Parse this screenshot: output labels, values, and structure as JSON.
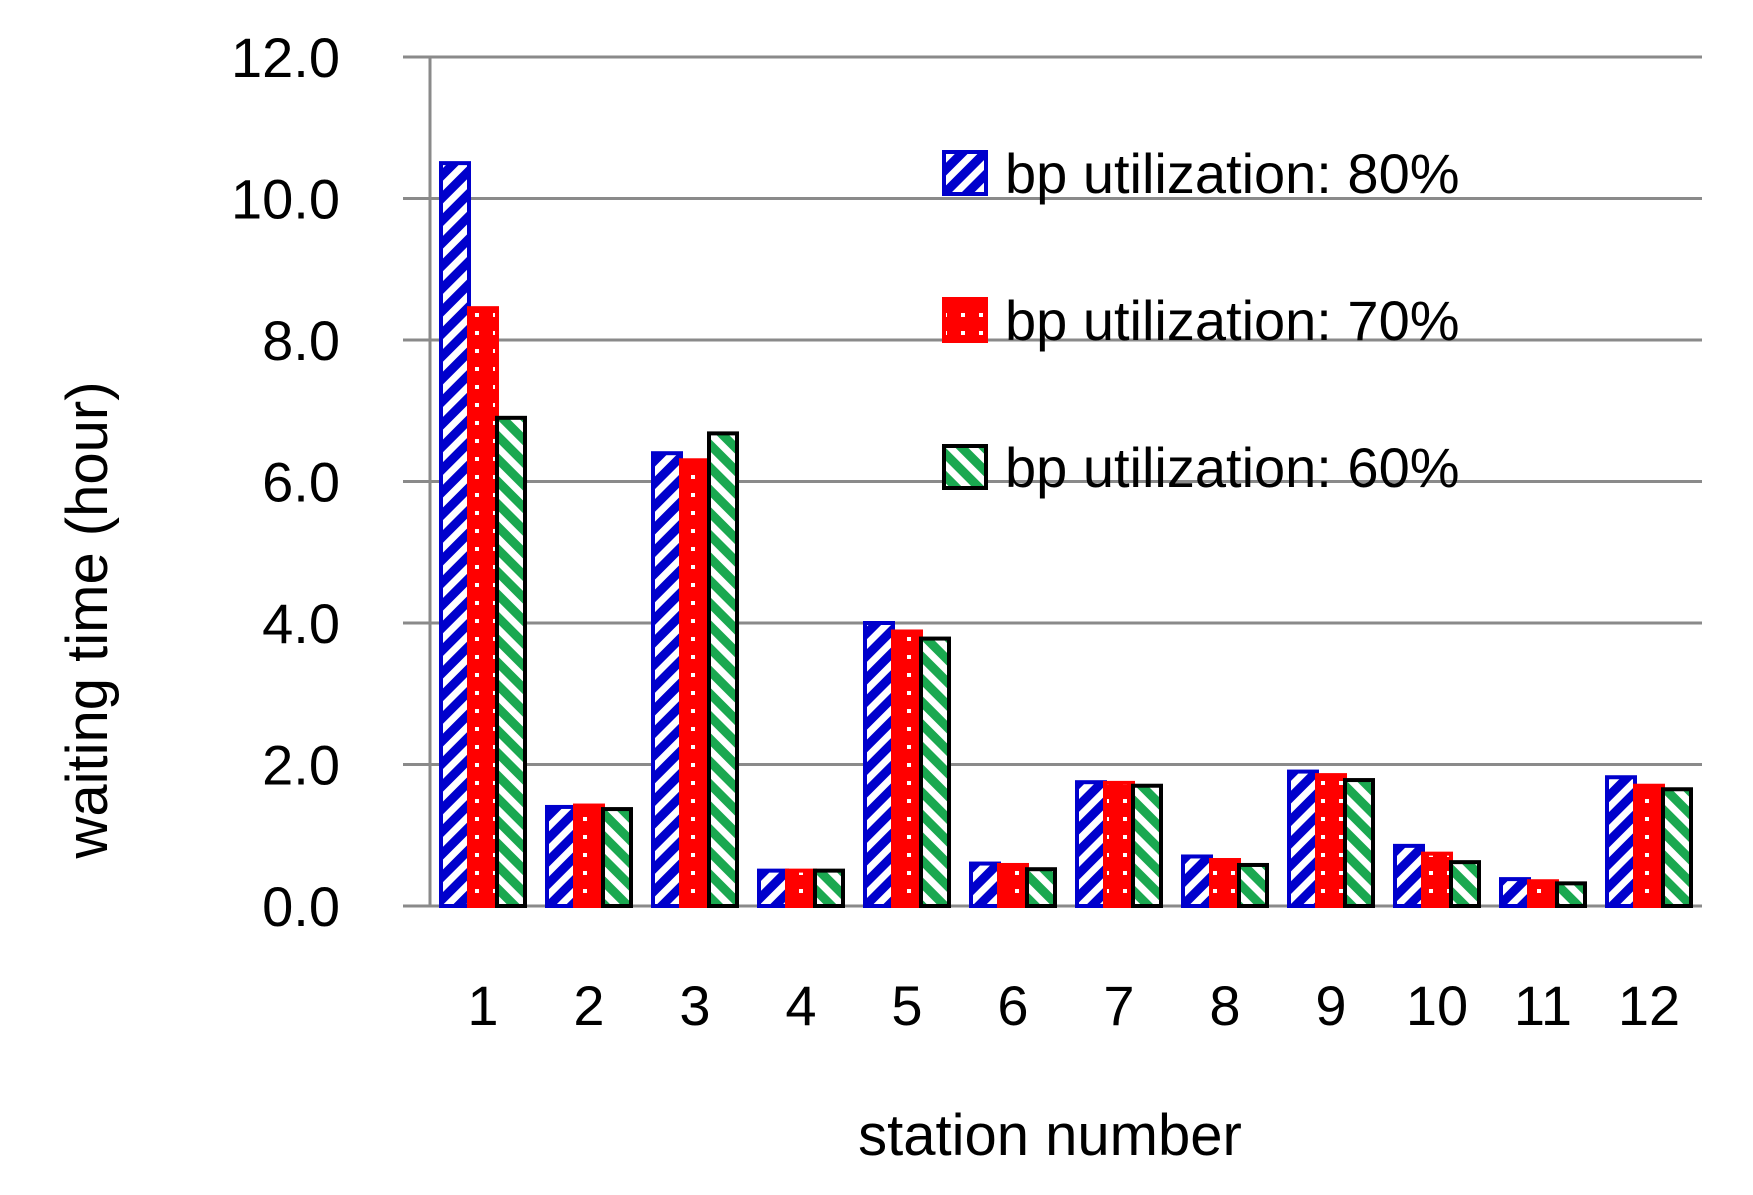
{
  "chart_data": {
    "type": "bar",
    "title": "",
    "xlabel": "station number",
    "ylabel": "waiting time (hour)",
    "ylim": [
      0,
      12
    ],
    "yticks": [
      "0.0",
      "2.0",
      "4.0",
      "6.0",
      "8.0",
      "10.0",
      "12.0"
    ],
    "categories": [
      "1",
      "2",
      "3",
      "4",
      "5",
      "6",
      "7",
      "8",
      "9",
      "10",
      "11",
      "12"
    ],
    "grid": "horizontal",
    "legend_position": "top-right",
    "series": [
      {
        "name": "bp utilization: 80%",
        "color": "#0000cc",
        "pattern": "diagonal-stripes",
        "values": [
          10.5,
          1.4,
          6.4,
          0.5,
          4.0,
          0.6,
          1.75,
          0.7,
          1.9,
          0.85,
          0.38,
          1.82
        ]
      },
      {
        "name": "bp utilization: 70%",
        "color": "#ff0000",
        "pattern": "dots",
        "values": [
          8.45,
          1.42,
          6.3,
          0.5,
          3.88,
          0.58,
          1.74,
          0.65,
          1.85,
          0.74,
          0.35,
          1.7
        ]
      },
      {
        "name": "bp utilization: 60%",
        "color": "#1aa850",
        "pattern": "diagonal-stripes-reverse",
        "values": [
          6.9,
          1.37,
          6.68,
          0.5,
          3.78,
          0.52,
          1.7,
          0.58,
          1.78,
          0.62,
          0.32,
          1.65
        ]
      }
    ]
  }
}
